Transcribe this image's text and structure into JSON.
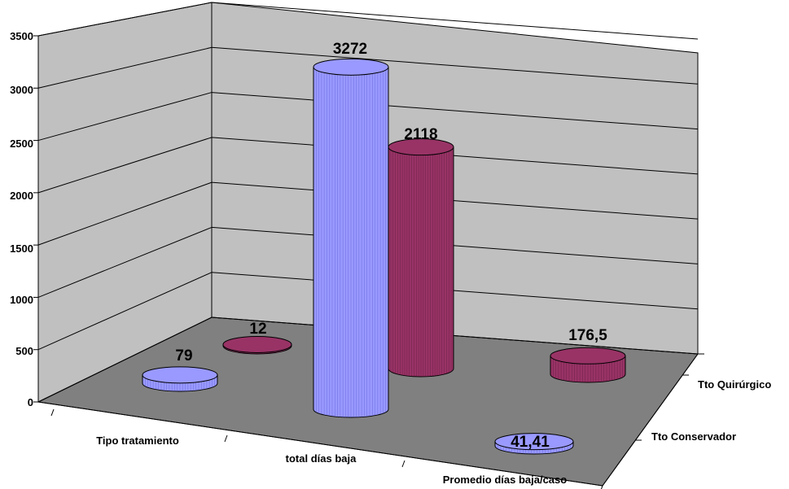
{
  "chart_data": {
    "type": "bar",
    "style": "3d-cylinder",
    "categories": [
      "Tipo tratamiento",
      "total días baja",
      "Promedio días baja/caso"
    ],
    "series": [
      {
        "name": "Tto Conservador",
        "values": [
          79,
          3272,
          41.41
        ],
        "labels": [
          "79",
          "3272",
          "41,41"
        ],
        "color": "#9999ff"
      },
      {
        "name": "Tto Quirúrgico",
        "values": [
          12,
          2118,
          176.5
        ],
        "labels": [
          "12",
          "2118",
          "176,5"
        ],
        "color": "#993366"
      }
    ],
    "y_ticks": [
      "0",
      "500",
      "1000",
      "1500",
      "2000",
      "2500",
      "3000",
      "3500"
    ],
    "ylim": [
      0,
      3500
    ],
    "grid": true,
    "wall_color": "#c0c0c0",
    "floor_color": "#808080",
    "legend_position": "depth-axis-right"
  }
}
